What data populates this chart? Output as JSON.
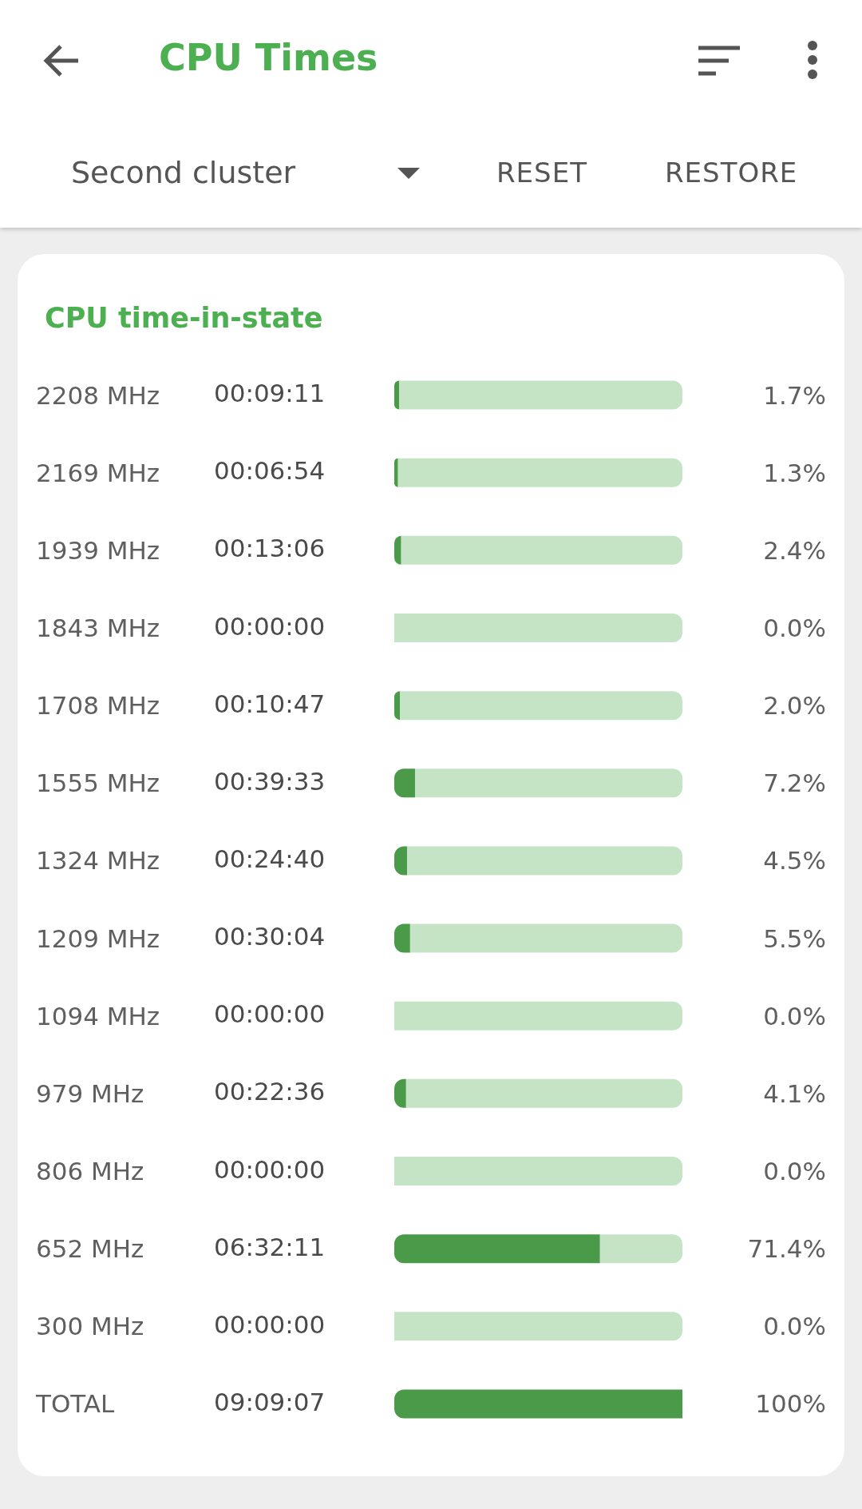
{
  "chart_data": {
    "type": "bar",
    "orientation": "horizontal",
    "stacked": true,
    "title": "CPU time-in-state",
    "categories": [
      "2208 MHz",
      "2169 MHz",
      "1939 MHz",
      "1843 MHz",
      "1708 MHz",
      "1555 MHz",
      "1324 MHz",
      "1209 MHz",
      "1094 MHz",
      "979 MHz",
      "806 MHz",
      "652 MHz",
      "300 MHz",
      "TOTAL"
    ],
    "series": [
      {
        "color": "#4a9a4a",
        "values": [
          1.7,
          1.3,
          2.4,
          0.0,
          2.0,
          7.2,
          4.5,
          5.5,
          0.0,
          4.1,
          0.0,
          71.4,
          0.0,
          100
        ],
        "value_labels": [
          "1.7%",
          "1.3%",
          "2.4%",
          "0.0%",
          "2.0%",
          "7.2%",
          "4.5%",
          "5.5%",
          "0.0%",
          "4.1%",
          "0.0%",
          "71.4%",
          "0.0%",
          "100%"
        ]
      },
      {
        "color": "#c5e3c5",
        "values": [
          98.3,
          98.7,
          97.6,
          100.0,
          98.0,
          92.8,
          95.5,
          94.5,
          100.0,
          95.9,
          100.0,
          28.6,
          100.0,
          0
        ]
      }
    ],
    "xlim": [
      0,
      100
    ],
    "annotations": [
      "CPU Times",
      "Second cluster",
      "RESET",
      "RESTORE",
      "00:09:11",
      "00:06:54",
      "00:13:06",
      "00:00:00",
      "00:10:47",
      "00:39:33",
      "00:24:40",
      "00:30:04",
      "00:00:00",
      "00:22:36",
      "00:00:00",
      "06:32:11",
      "00:00:00",
      "09:09:07"
    ]
  }
}
